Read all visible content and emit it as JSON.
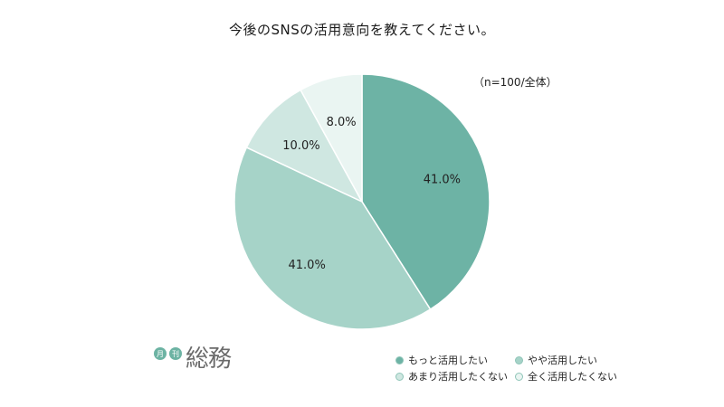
{
  "title": "今後のSNSの活用意向を教えてください。",
  "note": "（n=100/全体）",
  "logo": {
    "badge1": "月",
    "badge2": "刊",
    "mark": "総務"
  },
  "chart_data": {
    "type": "pie",
    "title": "今後のSNSの活用意向を教えてください。",
    "note": "（n=100/全体）",
    "slices": [
      {
        "label": "もっと活用したい",
        "value": 41.0,
        "display": "41.0%",
        "color": "#6db3a5"
      },
      {
        "label": "やや活用したい",
        "value": 41.0,
        "display": "41.0%",
        "color": "#a6d3c8"
      },
      {
        "label": "あまり活用したくない",
        "value": 10.0,
        "display": "10.0%",
        "color": "#cfe7e1"
      },
      {
        "label": "全く活用したくない",
        "value": 8.0,
        "display": "8.0%",
        "color": "#eaf5f2"
      }
    ],
    "legend_position": "bottom-right"
  }
}
